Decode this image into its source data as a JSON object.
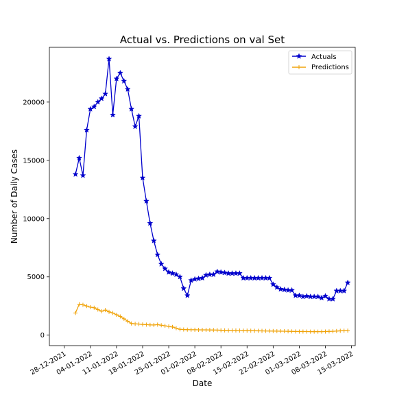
{
  "chart_data": {
    "type": "line",
    "title": "Actual vs. Predictions on val Set",
    "xlabel": "Date",
    "ylabel": "Number of Daily Cases",
    "x_start": "2021-12-31",
    "xlim": [
      "2021-12-24",
      "2022-03-16"
    ],
    "ylim": [
      -900,
      24700
    ],
    "x_ticks": [
      {
        "date": "2021-12-28",
        "label": "28-12-2021"
      },
      {
        "date": "2022-01-04",
        "label": "04-01-2022"
      },
      {
        "date": "2022-01-11",
        "label": "11-01-2022"
      },
      {
        "date": "2022-01-18",
        "label": "18-01-2022"
      },
      {
        "date": "2022-01-25",
        "label": "25-01-2022"
      },
      {
        "date": "2022-02-01",
        "label": "01-02-2022"
      },
      {
        "date": "2022-02-08",
        "label": "08-02-2022"
      },
      {
        "date": "2022-02-15",
        "label": "15-02-2022"
      },
      {
        "date": "2022-02-22",
        "label": "22-02-2022"
      },
      {
        "date": "2022-03-01",
        "label": "01-03-2022"
      },
      {
        "date": "2022-03-08",
        "label": "08-03-2022"
      },
      {
        "date": "2022-03-15",
        "label": "15-03-2022"
      }
    ],
    "y_ticks": [
      0,
      5000,
      10000,
      15000,
      20000
    ],
    "grid": false,
    "legend": "top-right",
    "series": [
      {
        "name": "Actuals",
        "color": "#0000cc",
        "marker": "star",
        "values": [
          13800,
          15200,
          13700,
          17600,
          19400,
          19600,
          20000,
          20300,
          20700,
          23700,
          18900,
          22000,
          22500,
          21800,
          21100,
          19400,
          17900,
          18800,
          13500,
          11500,
          9600,
          8100,
          6900,
          6100,
          5700,
          5400,
          5300,
          5200,
          5000,
          4000,
          3400,
          4700,
          4800,
          4850,
          4900,
          5150,
          5200,
          5200,
          5450,
          5400,
          5350,
          5300,
          5300,
          5300,
          5300,
          4900,
          4900,
          4900,
          4900,
          4900,
          4900,
          4900,
          4900,
          4350,
          4100,
          3950,
          3900,
          3850,
          3850,
          3400,
          3400,
          3300,
          3350,
          3300,
          3300,
          3300,
          3200,
          3350,
          3100,
          3100,
          3800,
          3800,
          3800,
          4500
        ]
      },
      {
        "name": "Predictions",
        "color": "#f0a30a",
        "marker": "plus",
        "values": [
          1900,
          2650,
          2600,
          2500,
          2400,
          2350,
          2200,
          2050,
          2150,
          2000,
          1900,
          1750,
          1600,
          1400,
          1200,
          1000,
          970,
          950,
          920,
          900,
          880,
          870,
          900,
          850,
          800,
          750,
          700,
          600,
          500,
          480,
          470,
          460,
          460,
          455,
          450,
          450,
          445,
          440,
          430,
          420,
          410,
          405,
          400,
          400,
          395,
          390,
          385,
          380,
          375,
          370,
          365,
          360,
          355,
          350,
          345,
          340,
          335,
          330,
          320,
          315,
          310,
          310,
          305,
          300,
          300,
          300,
          300,
          310,
          320,
          330,
          350,
          370,
          380,
          390
        ]
      }
    ]
  }
}
